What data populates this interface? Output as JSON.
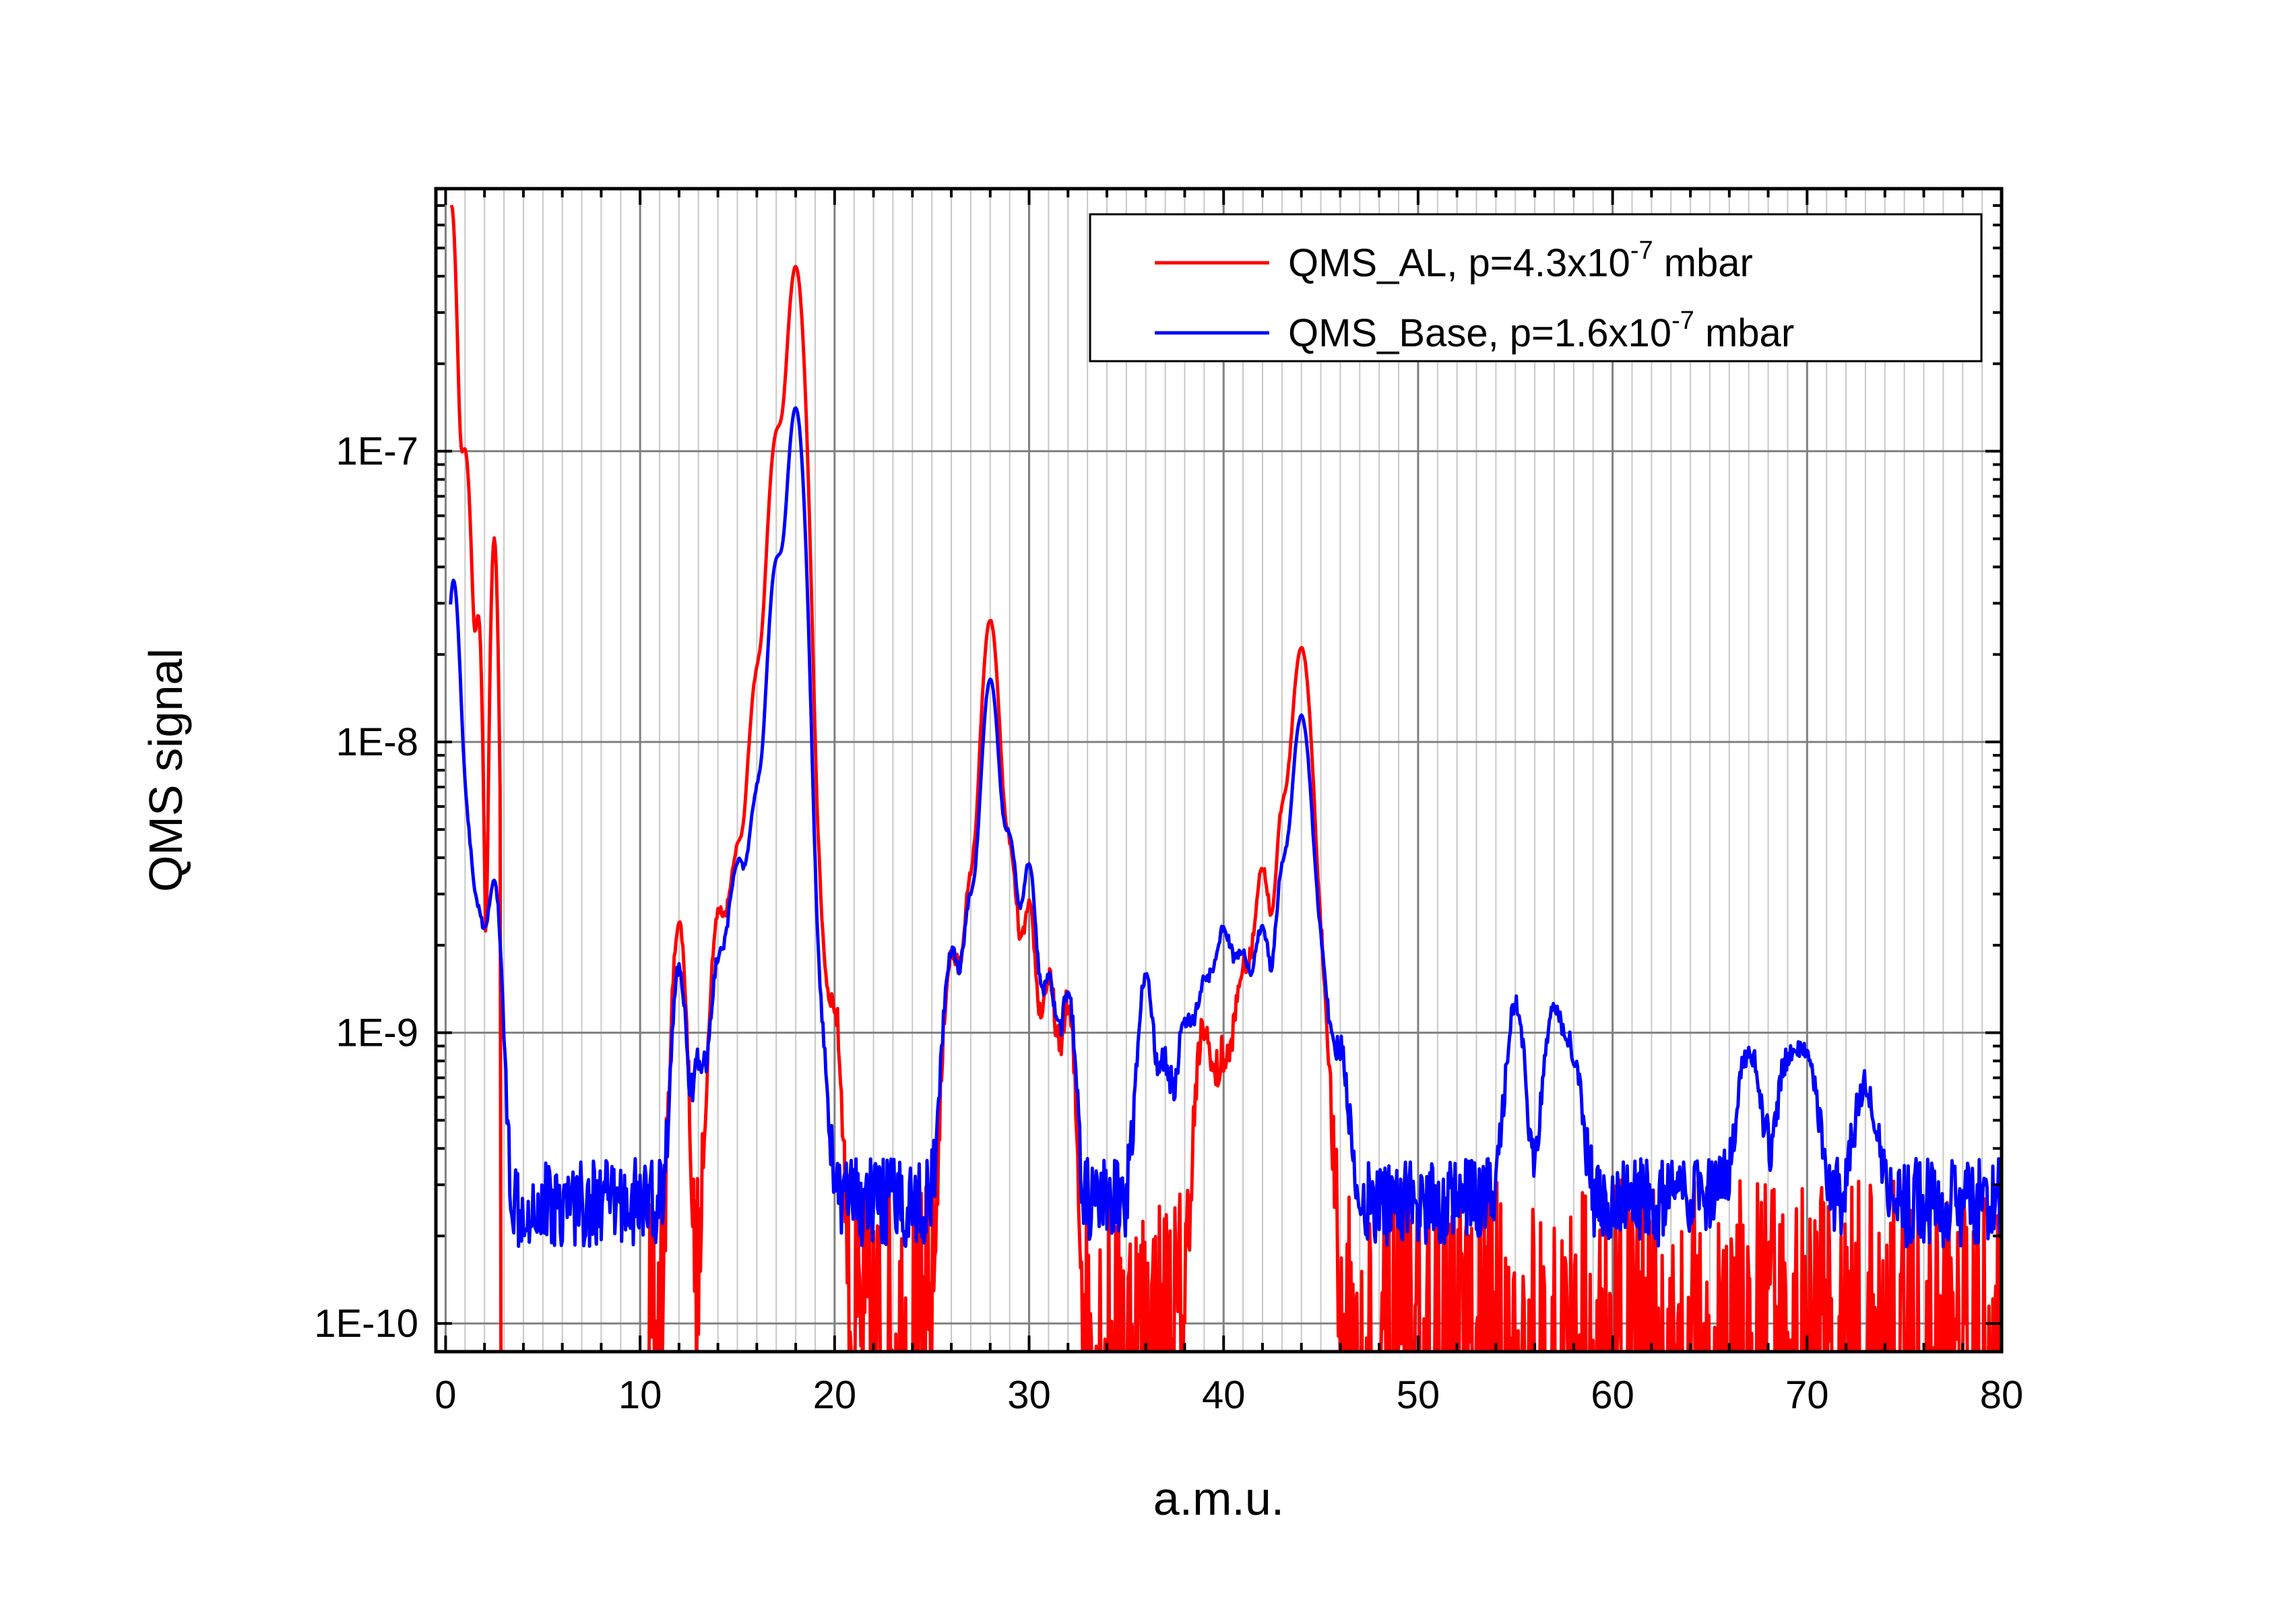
{
  "chart_data": {
    "type": "line",
    "title": "",
    "xlabel": "a.m.u.",
    "ylabel": "QMS signal",
    "xscale": "linear",
    "yscale": "log",
    "xlim": [
      -0.5,
      80
    ],
    "ylim": [
      8e-11,
      8e-07
    ],
    "xticks": [
      0,
      10,
      20,
      30,
      40,
      50,
      60,
      70,
      80
    ],
    "xtick_labels": [
      "0",
      "10",
      "20",
      "30",
      "40",
      "50",
      "60",
      "70",
      "80"
    ],
    "yticks": [
      1e-10,
      1e-09,
      1e-08,
      1e-07
    ],
    "ytick_labels": [
      "1E-10",
      "1E-9",
      "1E-8",
      "1E-7"
    ],
    "grid": true,
    "legend_position": "top-right",
    "series": [
      {
        "name": "QMS_AL, p=4.3x10",
        "name_exponent": "-7",
        "name_suffix": " mbar",
        "color": "#ff0000",
        "baseline": 8.5e-11,
        "peaks": [
          [
            0.3,
            7e-07,
            0.2
          ],
          [
            1.0,
            1e-07,
            0.25
          ],
          [
            1.7,
            2.5e-08,
            0.15
          ],
          [
            2.5,
            5e-08,
            0.15
          ],
          [
            12.0,
            2.3e-09,
            0.3
          ],
          [
            14.0,
            2.3e-09,
            0.35
          ],
          [
            15.0,
            4e-09,
            0.4
          ],
          [
            16.0,
            1.6e-08,
            0.35
          ],
          [
            17.0,
            1.1e-07,
            0.35
          ],
          [
            18.0,
            4.3e-07,
            0.35
          ],
          [
            19.0,
            3e-09,
            0.4
          ],
          [
            20.0,
            1e-09,
            0.3
          ],
          [
            26.0,
            1.7e-09,
            0.35
          ],
          [
            27.0,
            3e-09,
            0.35
          ],
          [
            28.0,
            2.6e-08,
            0.35
          ],
          [
            29.0,
            4e-09,
            0.35
          ],
          [
            30.0,
            2.5e-09,
            0.3
          ],
          [
            31.0,
            1.4e-09,
            0.35
          ],
          [
            32.0,
            1.1e-09,
            0.3
          ],
          [
            39.0,
            9e-10,
            0.4
          ],
          [
            40.0,
            6e-10,
            0.35
          ],
          [
            41.0,
            1.5e-09,
            0.4
          ],
          [
            42.0,
            3.5e-09,
            0.35
          ],
          [
            43.0,
            5e-09,
            0.3
          ],
          [
            44.0,
            2.1e-08,
            0.4
          ],
          [
            45.0,
            1.3e-09,
            0.35
          ]
        ]
      },
      {
        "name": "QMS_Base, p=1.6x10",
        "name_exponent": "-7",
        "name_suffix": " mbar",
        "color": "#0000ff",
        "baseline": 2.6e-10,
        "peaks": [
          [
            0.4,
            3.5e-08,
            0.25
          ],
          [
            1.0,
            5e-09,
            0.3
          ],
          [
            1.7,
            2e-09,
            0.3
          ],
          [
            2.5,
            3e-09,
            0.3
          ],
          [
            12.0,
            1.4e-09,
            0.3
          ],
          [
            13.0,
            5e-10,
            0.3
          ],
          [
            14.0,
            1.4e-09,
            0.35
          ],
          [
            15.0,
            3.5e-09,
            0.4
          ],
          [
            16.0,
            6e-09,
            0.35
          ],
          [
            17.0,
            4e-08,
            0.35
          ],
          [
            18.0,
            1.4e-07,
            0.35
          ],
          [
            19.0,
            1.2e-09,
            0.4
          ],
          [
            26.0,
            1.6e-09,
            0.35
          ],
          [
            27.0,
            2.5e-09,
            0.35
          ],
          [
            28.0,
            1.6e-08,
            0.35
          ],
          [
            29.0,
            4.3e-09,
            0.35
          ],
          [
            30.0,
            3.5e-09,
            0.3
          ],
          [
            31.0,
            1.3e-09,
            0.35
          ],
          [
            32.0,
            1.1e-09,
            0.3
          ],
          [
            36.0,
            1.3e-09,
            0.35
          ],
          [
            37.0,
            5e-10,
            0.3
          ],
          [
            38.0,
            8e-10,
            0.35
          ],
          [
            39.0,
            1.2e-09,
            0.4
          ],
          [
            40.0,
            1.9e-09,
            0.4
          ],
          [
            41.0,
            1.5e-09,
            0.4
          ],
          [
            42.0,
            2e-09,
            0.35
          ],
          [
            43.0,
            3e-09,
            0.3
          ],
          [
            44.0,
            1.2e-08,
            0.4
          ],
          [
            45.0,
            1.4e-09,
            0.35
          ],
          [
            46.0,
            6e-10,
            0.35
          ],
          [
            55.0,
            1e-09,
            0.4
          ],
          [
            57.0,
            9.5e-10,
            0.45
          ],
          [
            58.0,
            5e-10,
            0.4
          ],
          [
            67.0,
            6e-10,
            0.5
          ],
          [
            69.0,
            5e-10,
            0.5
          ],
          [
            70.0,
            5.5e-10,
            0.5
          ],
          [
            73.0,
            4e-10,
            0.5
          ]
        ]
      }
    ]
  }
}
